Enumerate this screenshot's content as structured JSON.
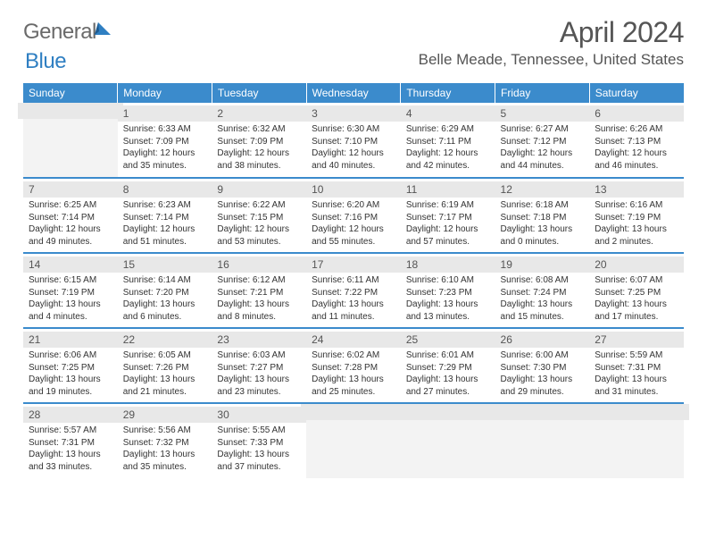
{
  "brand": {
    "part1": "General",
    "part2": "Blue",
    "logo_color": "#2f7fc2"
  },
  "title": "April 2024",
  "location": "Belle Meade, Tennessee, United States",
  "colors": {
    "header_bg": "#3b8bcc",
    "header_text": "#ffffff",
    "daynum_bg": "#e8e8e8",
    "text": "#333333",
    "muted": "#555555"
  },
  "day_headers": [
    "Sunday",
    "Monday",
    "Tuesday",
    "Wednesday",
    "Thursday",
    "Friday",
    "Saturday"
  ],
  "weeks": [
    [
      null,
      {
        "n": "1",
        "sr": "6:33 AM",
        "ss": "7:09 PM",
        "dl": "12 hours and 35 minutes."
      },
      {
        "n": "2",
        "sr": "6:32 AM",
        "ss": "7:09 PM",
        "dl": "12 hours and 38 minutes."
      },
      {
        "n": "3",
        "sr": "6:30 AM",
        "ss": "7:10 PM",
        "dl": "12 hours and 40 minutes."
      },
      {
        "n": "4",
        "sr": "6:29 AM",
        "ss": "7:11 PM",
        "dl": "12 hours and 42 minutes."
      },
      {
        "n": "5",
        "sr": "6:27 AM",
        "ss": "7:12 PM",
        "dl": "12 hours and 44 minutes."
      },
      {
        "n": "6",
        "sr": "6:26 AM",
        "ss": "7:13 PM",
        "dl": "12 hours and 46 minutes."
      }
    ],
    [
      {
        "n": "7",
        "sr": "6:25 AM",
        "ss": "7:14 PM",
        "dl": "12 hours and 49 minutes."
      },
      {
        "n": "8",
        "sr": "6:23 AM",
        "ss": "7:14 PM",
        "dl": "12 hours and 51 minutes."
      },
      {
        "n": "9",
        "sr": "6:22 AM",
        "ss": "7:15 PM",
        "dl": "12 hours and 53 minutes."
      },
      {
        "n": "10",
        "sr": "6:20 AM",
        "ss": "7:16 PM",
        "dl": "12 hours and 55 minutes."
      },
      {
        "n": "11",
        "sr": "6:19 AM",
        "ss": "7:17 PM",
        "dl": "12 hours and 57 minutes."
      },
      {
        "n": "12",
        "sr": "6:18 AM",
        "ss": "7:18 PM",
        "dl": "13 hours and 0 minutes."
      },
      {
        "n": "13",
        "sr": "6:16 AM",
        "ss": "7:19 PM",
        "dl": "13 hours and 2 minutes."
      }
    ],
    [
      {
        "n": "14",
        "sr": "6:15 AM",
        "ss": "7:19 PM",
        "dl": "13 hours and 4 minutes."
      },
      {
        "n": "15",
        "sr": "6:14 AM",
        "ss": "7:20 PM",
        "dl": "13 hours and 6 minutes."
      },
      {
        "n": "16",
        "sr": "6:12 AM",
        "ss": "7:21 PM",
        "dl": "13 hours and 8 minutes."
      },
      {
        "n": "17",
        "sr": "6:11 AM",
        "ss": "7:22 PM",
        "dl": "13 hours and 11 minutes."
      },
      {
        "n": "18",
        "sr": "6:10 AM",
        "ss": "7:23 PM",
        "dl": "13 hours and 13 minutes."
      },
      {
        "n": "19",
        "sr": "6:08 AM",
        "ss": "7:24 PM",
        "dl": "13 hours and 15 minutes."
      },
      {
        "n": "20",
        "sr": "6:07 AM",
        "ss": "7:25 PM",
        "dl": "13 hours and 17 minutes."
      }
    ],
    [
      {
        "n": "21",
        "sr": "6:06 AM",
        "ss": "7:25 PM",
        "dl": "13 hours and 19 minutes."
      },
      {
        "n": "22",
        "sr": "6:05 AM",
        "ss": "7:26 PM",
        "dl": "13 hours and 21 minutes."
      },
      {
        "n": "23",
        "sr": "6:03 AM",
        "ss": "7:27 PM",
        "dl": "13 hours and 23 minutes."
      },
      {
        "n": "24",
        "sr": "6:02 AM",
        "ss": "7:28 PM",
        "dl": "13 hours and 25 minutes."
      },
      {
        "n": "25",
        "sr": "6:01 AM",
        "ss": "7:29 PM",
        "dl": "13 hours and 27 minutes."
      },
      {
        "n": "26",
        "sr": "6:00 AM",
        "ss": "7:30 PM",
        "dl": "13 hours and 29 minutes."
      },
      {
        "n": "27",
        "sr": "5:59 AM",
        "ss": "7:31 PM",
        "dl": "13 hours and 31 minutes."
      }
    ],
    [
      {
        "n": "28",
        "sr": "5:57 AM",
        "ss": "7:31 PM",
        "dl": "13 hours and 33 minutes."
      },
      {
        "n": "29",
        "sr": "5:56 AM",
        "ss": "7:32 PM",
        "dl": "13 hours and 35 minutes."
      },
      {
        "n": "30",
        "sr": "5:55 AM",
        "ss": "7:33 PM",
        "dl": "13 hours and 37 minutes."
      },
      null,
      null,
      null,
      null
    ]
  ],
  "labels": {
    "sunrise": "Sunrise:",
    "sunset": "Sunset:",
    "daylight": "Daylight:"
  }
}
